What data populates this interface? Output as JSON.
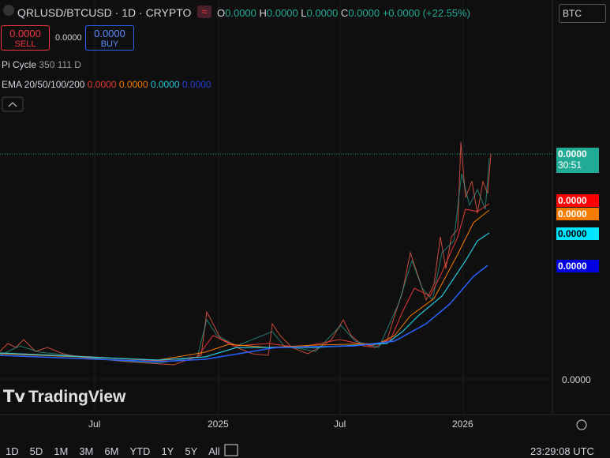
{
  "header": {
    "symbol": "QRLUSD/BTCUSD · 1D · CRYPTO",
    "ohlc": [
      {
        "key": "O",
        "value": "0.0000"
      },
      {
        "key": "H",
        "value": "0.0000"
      },
      {
        "key": "L",
        "value": "0.0000"
      },
      {
        "key": "C",
        "value": "0.0000"
      }
    ],
    "change": "+0.0000 (+22.55%)",
    "currency": "BTC"
  },
  "trade": {
    "sell_price": "0.0000",
    "sell": "SELL",
    "spread": "0.0000",
    "buy_price": "0.0000",
    "buy": "BUY"
  },
  "indicators": [
    {
      "name": "Pi Cycle",
      "params": "350 111 D"
    },
    {
      "name": "EMA 20/50/100/200",
      "values": [
        "0.0000",
        "0.0000",
        "0.0000",
        "0.0000"
      ]
    }
  ],
  "price_axis": {
    "last": "0.0000",
    "countdown": "30:51",
    "ema_labels": [
      "0.0000",
      "0.0000",
      "0.0000",
      "0.0000"
    ],
    "tick": "0.0000"
  },
  "time_axis": [
    "Jul",
    "2025",
    "Jul",
    "2026"
  ],
  "logo": "TradingView",
  "toolbar": {
    "ranges": [
      "1D",
      "5D",
      "1M",
      "3M",
      "6M",
      "YTD",
      "1Y",
      "5Y",
      "All"
    ],
    "clock": "23:29:08 UTC"
  }
}
